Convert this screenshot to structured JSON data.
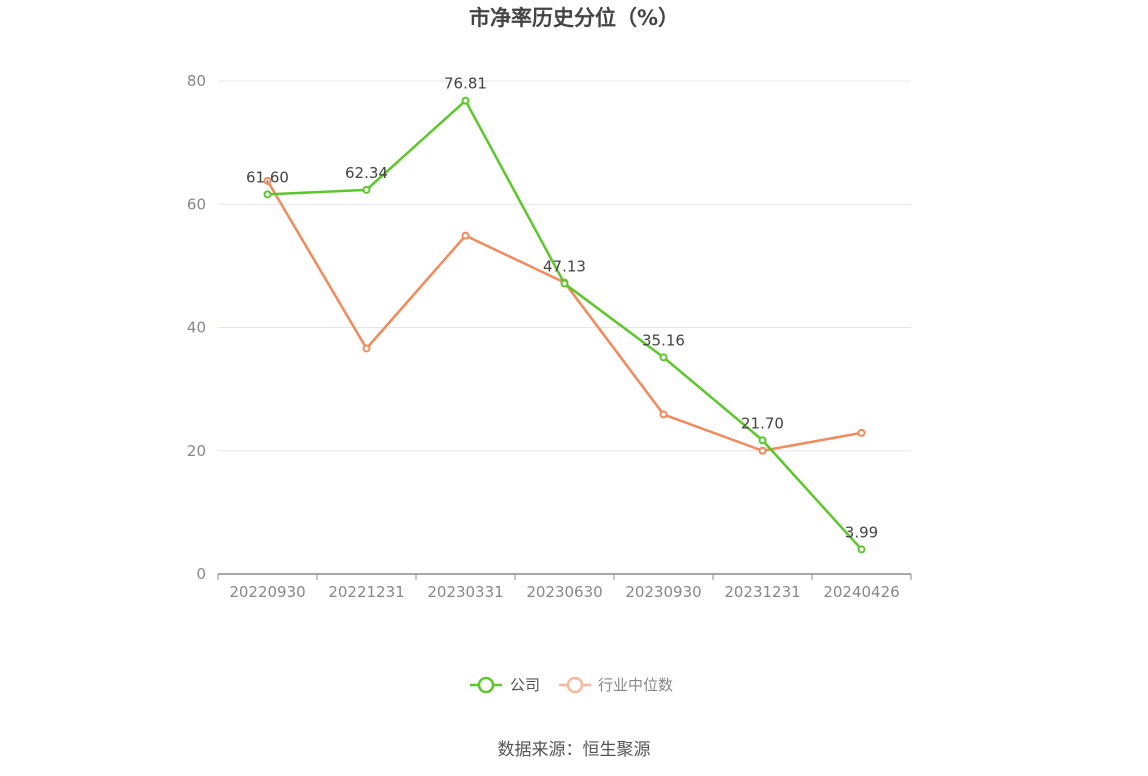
{
  "chart_data": {
    "type": "line",
    "title": "市净率历史分位（%）",
    "categories": [
      "20220930",
      "20221231",
      "20230331",
      "20230630",
      "20230930",
      "20231231",
      "20240426"
    ],
    "yticks": [
      "0",
      "20",
      "40",
      "60",
      "80"
    ],
    "ylim": [
      0,
      80
    ],
    "grid": true,
    "legend_position": "bottom-center",
    "series": [
      {
        "name": "公司",
        "color": "#5cc72a",
        "values": [
          61.6,
          62.34,
          76.81,
          47.13,
          35.16,
          21.7,
          3.99
        ],
        "labels": [
          "61.60",
          "62.34",
          "76.81",
          "47.13",
          "35.16",
          "21.70",
          "3.99"
        ]
      },
      {
        "name": "行业中位数",
        "color": "#f28a5b",
        "values": [
          63.8,
          36.6,
          54.9,
          47.3,
          25.9,
          20.0,
          22.9
        ]
      }
    ],
    "source": "数据来源：恒生聚源"
  }
}
